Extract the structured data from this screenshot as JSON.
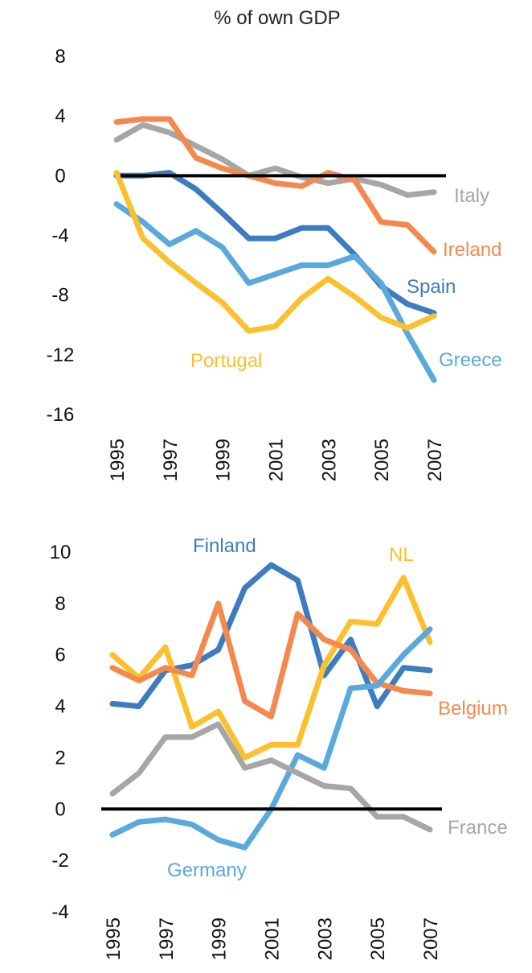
{
  "title": "% of own GDP",
  "chart_data": [
    {
      "type": "line",
      "x": [
        1995,
        1996,
        1997,
        1998,
        1999,
        2000,
        2001,
        2002,
        2003,
        2004,
        2005,
        2006,
        2007
      ],
      "xticks": [
        "1995",
        "1997",
        "1999",
        "2001",
        "2003",
        "2005",
        "2007"
      ],
      "yticks": [
        "8",
        "4",
        "0",
        "-4",
        "-8",
        "-12",
        "-16"
      ],
      "ylim": [
        -16,
        8
      ],
      "zero_line": true,
      "grid": false,
      "legend": "inline labels",
      "series": [
        {
          "name": "Italy",
          "color": "#a6a6a6",
          "values": [
            2.4,
            3.4,
            2.9,
            2.0,
            1.1,
            0.0,
            0.5,
            -0.1,
            -0.5,
            -0.2,
            -0.6,
            -1.3,
            -1.1
          ]
        },
        {
          "name": "Ireland",
          "color": "#f4894d",
          "values": [
            3.6,
            3.8,
            3.8,
            1.2,
            0.5,
            0.0,
            -0.5,
            -0.7,
            0.2,
            -0.3,
            -3.1,
            -3.3,
            -5.1
          ]
        },
        {
          "name": "Spain",
          "color": "#3e7cc0",
          "values": [
            0.0,
            0.0,
            0.2,
            -0.9,
            -2.5,
            -4.2,
            -4.2,
            -3.5,
            -3.5,
            -5.3,
            -7.4,
            -8.6,
            -9.2
          ]
        },
        {
          "name": "Greece",
          "color": "#5aa9dc",
          "values": [
            -1.9,
            -3.1,
            -4.6,
            -3.7,
            -4.8,
            -7.2,
            -6.6,
            -6.0,
            -6.0,
            -5.4,
            -7.2,
            -10.6,
            -13.7
          ]
        },
        {
          "name": "Portugal",
          "color": "#fbc02d",
          "values": [
            0.2,
            -4.2,
            -5.8,
            -7.2,
            -8.5,
            -10.4,
            -10.1,
            -8.2,
            -6.9,
            -8.1,
            -9.5,
            -10.2,
            -9.4
          ]
        }
      ]
    },
    {
      "type": "line",
      "x": [
        1995,
        1996,
        1997,
        1998,
        1999,
        2000,
        2001,
        2002,
        2003,
        2004,
        2005,
        2006,
        2007
      ],
      "xticks": [
        "1995",
        "1997",
        "1999",
        "2001",
        "2003",
        "2005",
        "2007"
      ],
      "yticks": [
        "10",
        "8",
        "6",
        "4",
        "2",
        "0",
        "-2",
        "-4"
      ],
      "ylim": [
        -4,
        10
      ],
      "zero_line": true,
      "grid": false,
      "legend": "inline labels",
      "series": [
        {
          "name": "Finland",
          "color": "#3e7cc0",
          "values": [
            4.1,
            4.0,
            5.4,
            5.6,
            6.2,
            8.6,
            9.5,
            8.9,
            5.2,
            6.6,
            4.0,
            5.5,
            5.4
          ]
        },
        {
          "name": "NL",
          "color": "#fbc02d",
          "values": [
            6.0,
            5.1,
            6.3,
            3.2,
            3.8,
            2.0,
            2.5,
            2.5,
            5.6,
            7.3,
            7.2,
            9.0,
            6.5
          ]
        },
        {
          "name": "Belgium",
          "color": "#f4894d",
          "values": [
            5.5,
            5.0,
            5.5,
            5.2,
            8.0,
            4.2,
            3.6,
            7.6,
            6.6,
            6.2,
            4.9,
            4.6,
            4.5
          ]
        },
        {
          "name": "Germany",
          "color": "#5aa9dc",
          "values": [
            -1.0,
            -0.5,
            -0.4,
            -0.6,
            -1.2,
            -1.5,
            0.0,
            2.1,
            1.6,
            4.7,
            4.8,
            6.0,
            7.0
          ]
        },
        {
          "name": "France",
          "color": "#a6a6a6",
          "values": [
            0.6,
            1.4,
            2.8,
            2.8,
            3.3,
            1.6,
            1.9,
            1.4,
            0.9,
            0.8,
            -0.3,
            -0.3,
            -0.8
          ]
        }
      ]
    }
  ]
}
